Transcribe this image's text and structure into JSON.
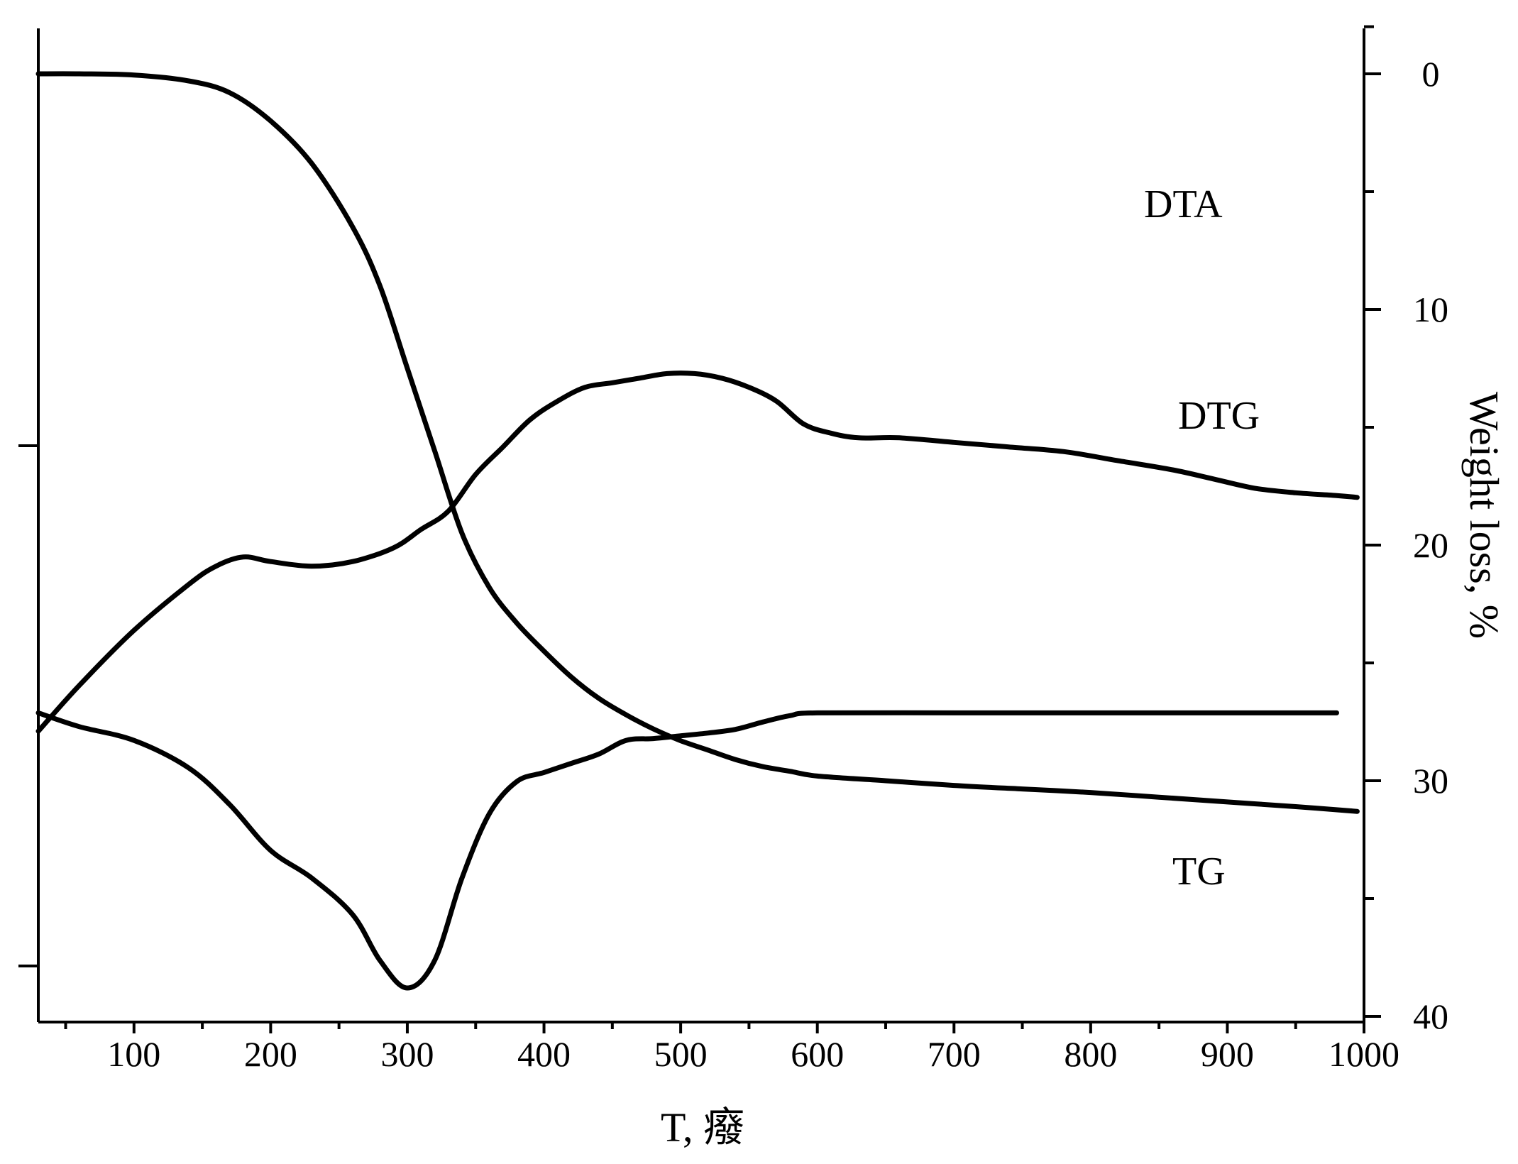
{
  "chart_data": {
    "type": "line",
    "xlabel": "T, 癈",
    "ylabel_right": "Weight loss, %",
    "xlim": [
      30,
      1000
    ],
    "ylim_right": [
      0,
      40
    ],
    "right_axis_inverted": true,
    "left_axis_tick_labels": false,
    "grid": false,
    "x_ticks": [
      100,
      200,
      300,
      400,
      500,
      600,
      700,
      800,
      900,
      1000
    ],
    "x_tick_labels": [
      "100",
      "200",
      "300",
      "400",
      "500",
      "600",
      "700",
      "800",
      "900",
      "1000"
    ],
    "y_ticks_right": [
      0,
      10,
      20,
      30,
      40
    ],
    "y_tick_labels_right": [
      "0",
      "10",
      "20",
      "30",
      "40"
    ],
    "series": [
      {
        "name": "DTA",
        "axis": "left",
        "x": [
          30,
          60,
          100,
          140,
          160,
          180,
          200,
          230,
          260,
          290,
          310,
          330,
          350,
          370,
          390,
          410,
          430,
          450,
          470,
          490,
          510,
          530,
          550,
          570,
          590,
          610,
          630,
          660,
          700,
          740,
          780,
          820,
          860,
          890,
          920,
          950,
          980,
          995
        ],
        "y": [
          0.28,
          0.33,
          0.39,
          0.44,
          0.46,
          0.47,
          0.465,
          0.46,
          0.465,
          0.48,
          0.5,
          0.52,
          0.56,
          0.59,
          0.62,
          0.64,
          0.655,
          0.66,
          0.665,
          0.67,
          0.67,
          0.665,
          0.655,
          0.64,
          0.615,
          0.605,
          0.6,
          0.6,
          0.595,
          0.59,
          0.585,
          0.575,
          0.565,
          0.555,
          0.545,
          0.54,
          0.537,
          0.535
        ],
        "unit": "arbitrary (no left-axis scale printed)"
      },
      {
        "name": "DTG",
        "axis": "left",
        "x": [
          30,
          60,
          100,
          140,
          170,
          200,
          230,
          260,
          280,
          300,
          320,
          340,
          360,
          380,
          400,
          420,
          440,
          460,
          480,
          500,
          520,
          540,
          560,
          580,
          600,
          700,
          800,
          900,
          980
        ],
        "y": [
          0.3,
          0.285,
          0.27,
          0.24,
          0.2,
          0.15,
          0.12,
          0.08,
          0.03,
          0.0,
          0.03,
          0.12,
          0.19,
          0.225,
          0.235,
          0.245,
          0.255,
          0.27,
          0.272,
          0.275,
          0.278,
          0.282,
          0.29,
          0.297,
          0.3,
          0.3,
          0.3,
          0.3,
          0.3
        ],
        "unit": "arbitrary (no left-axis scale printed)"
      },
      {
        "name": "TG",
        "axis": "right",
        "x": [
          30,
          60,
          100,
          140,
          170,
          200,
          230,
          260,
          280,
          300,
          320,
          340,
          360,
          380,
          400,
          420,
          440,
          460,
          480,
          500,
          520,
          540,
          560,
          580,
          600,
          650,
          700,
          750,
          800,
          850,
          900,
          950,
          995
        ],
        "y": [
          0,
          0,
          0.05,
          0.3,
          0.8,
          2.0,
          3.8,
          6.5,
          9.0,
          12.5,
          16.0,
          19.5,
          21.8,
          23.3,
          24.5,
          25.6,
          26.5,
          27.2,
          27.8,
          28.3,
          28.7,
          29.1,
          29.4,
          29.6,
          29.8,
          30.0,
          30.2,
          30.35,
          30.5,
          30.7,
          30.9,
          31.1,
          31.3
        ]
      }
    ]
  }
}
